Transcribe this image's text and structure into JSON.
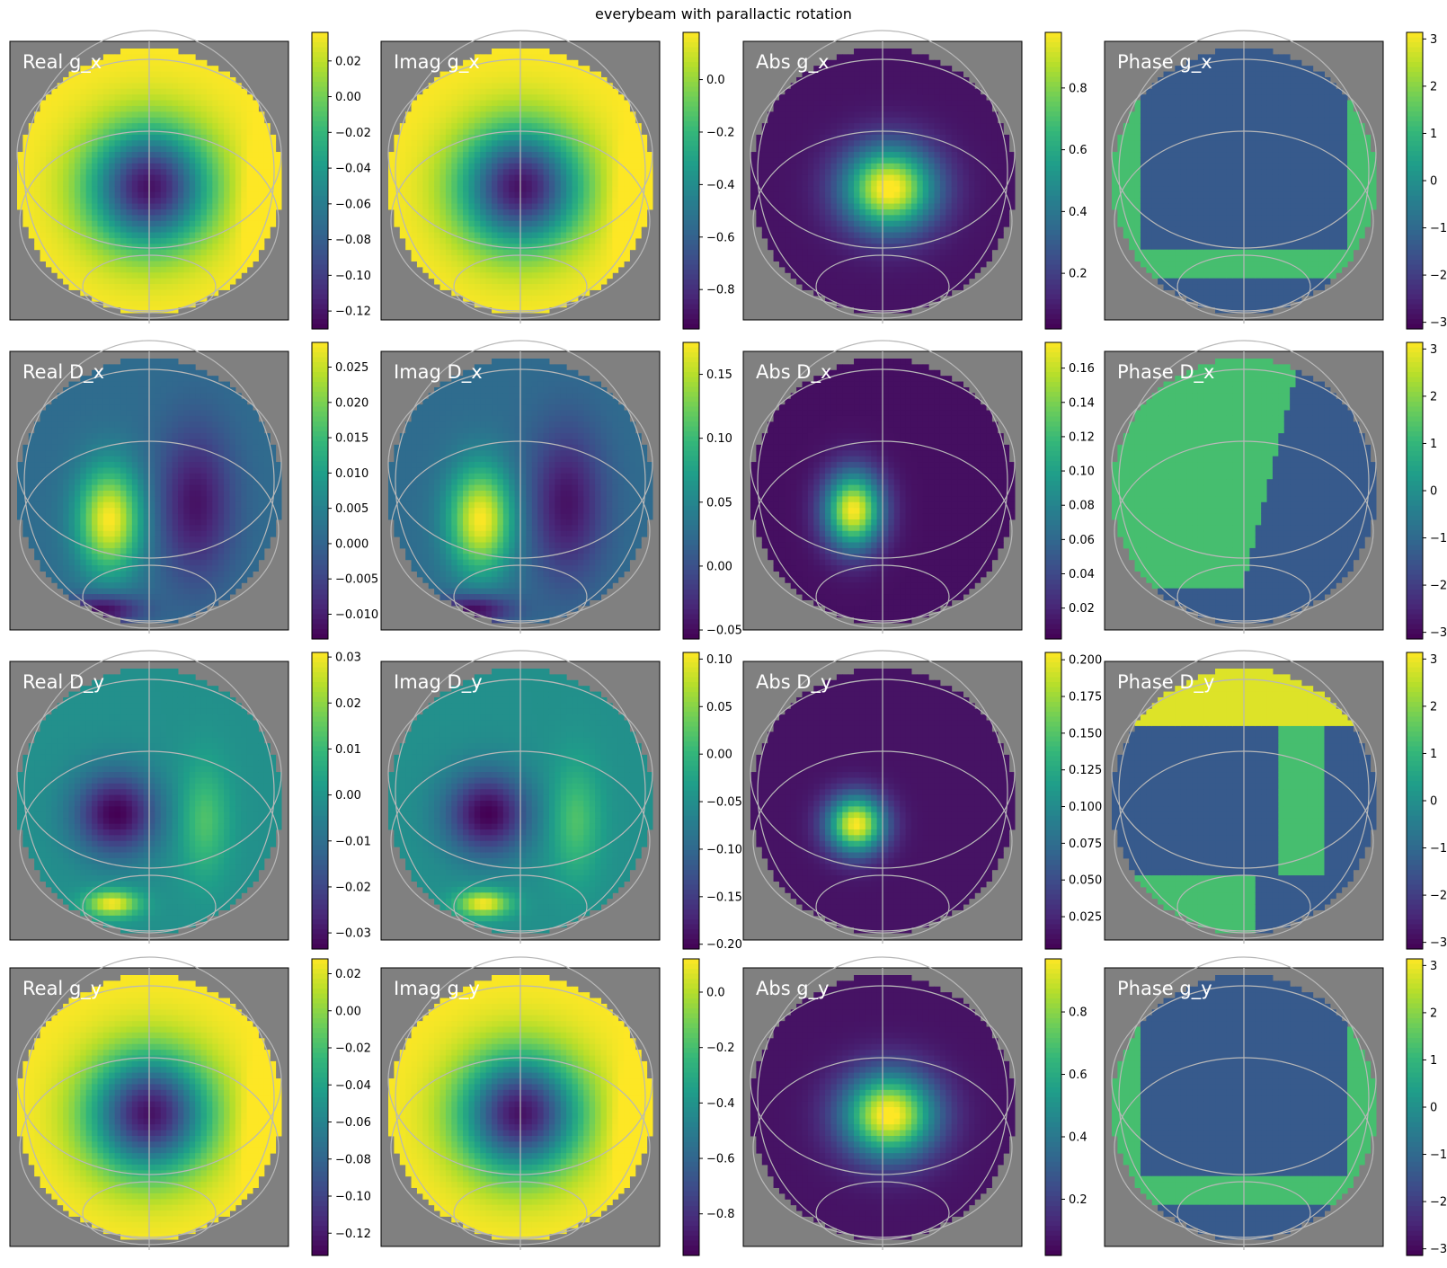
{
  "figure_title": "everybeam with parallactic rotation",
  "colors": {
    "background": "#808080",
    "grid": "#b8b8b8",
    "label": "#ffffff",
    "colormap": "viridis"
  },
  "chart_data": [
    {
      "type": "heatmap",
      "title": "Real g_x",
      "colorbar": {
        "range": [
          -0.13,
          0.036
        ],
        "ticks": [
          0.02,
          0.0,
          -0.02,
          -0.04,
          -0.06,
          -0.08,
          -0.1,
          -0.12
        ],
        "tick_labels": [
          "0.02",
          "0.00",
          "−0.02",
          "−0.04",
          "−0.06",
          "−0.08",
          "−0.10",
          "−0.12"
        ]
      },
      "pattern": "ring-center-low"
    },
    {
      "type": "heatmap",
      "title": "Imag g_x",
      "colorbar": {
        "range": [
          -0.95,
          0.18
        ],
        "ticks": [
          0.0,
          -0.2,
          -0.4,
          -0.6,
          -0.8
        ],
        "tick_labels": [
          "0.0",
          "−0.2",
          "−0.4",
          "−0.6",
          "−0.8"
        ]
      },
      "pattern": "ring-center-low"
    },
    {
      "type": "heatmap",
      "title": "Abs g_x",
      "colorbar": {
        "range": [
          0.02,
          0.98
        ],
        "ticks": [
          0.8,
          0.6,
          0.4,
          0.2
        ],
        "tick_labels": [
          "0.8",
          "0.6",
          "0.4",
          "0.2"
        ]
      },
      "pattern": "center-peak"
    },
    {
      "type": "heatmap",
      "title": "Phase g_x",
      "colorbar": {
        "range": [
          -3.14,
          3.14
        ],
        "ticks": [
          3,
          2,
          1,
          0,
          -1,
          -2,
          -3
        ],
        "tick_labels": [
          "3",
          "2",
          "1",
          "0",
          "−1",
          "−2",
          "−3"
        ]
      },
      "pattern": "phase-box"
    },
    {
      "type": "heatmap",
      "title": "Real D_x",
      "colorbar": {
        "range": [
          -0.0135,
          0.0285
        ],
        "ticks": [
          0.025,
          0.02,
          0.015,
          0.01,
          0.005,
          0.0,
          -0.005,
          -0.01
        ],
        "tick_labels": [
          "0.025",
          "0.020",
          "0.015",
          "0.010",
          "0.005",
          "0.000",
          "−0.005",
          "−0.010"
        ]
      },
      "pattern": "left-lobe"
    },
    {
      "type": "heatmap",
      "title": "Imag D_x",
      "colorbar": {
        "range": [
          -0.057,
          0.175
        ],
        "ticks": [
          0.15,
          0.1,
          0.05,
          0.0,
          -0.05
        ],
        "tick_labels": [
          "0.15",
          "0.10",
          "0.05",
          "0.00",
          "−0.05"
        ]
      },
      "pattern": "left-lobe"
    },
    {
      "type": "heatmap",
      "title": "Abs D_x",
      "colorbar": {
        "range": [
          0.002,
          0.175
        ],
        "ticks": [
          0.16,
          0.14,
          0.12,
          0.1,
          0.08,
          0.06,
          0.04,
          0.02
        ],
        "tick_labels": [
          "0.16",
          "0.14",
          "0.12",
          "0.10",
          "0.08",
          "0.06",
          "0.04",
          "0.02"
        ]
      },
      "pattern": "left-peak"
    },
    {
      "type": "heatmap",
      "title": "Phase D_x",
      "colorbar": {
        "range": [
          -3.14,
          3.14
        ],
        "ticks": [
          3,
          2,
          1,
          0,
          -1,
          -2,
          -3
        ],
        "tick_labels": [
          "3",
          "2",
          "1",
          "0",
          "−1",
          "−2",
          "−3"
        ]
      },
      "pattern": "phase-split"
    },
    {
      "type": "heatmap",
      "title": "Real D_y",
      "colorbar": {
        "range": [
          -0.0335,
          0.031
        ],
        "ticks": [
          0.03,
          0.02,
          0.01,
          0.0,
          -0.01,
          -0.02,
          -0.03
        ],
        "tick_labels": [
          "0.03",
          "0.02",
          "0.01",
          "0.00",
          "−0.01",
          "−0.02",
          "−0.03"
        ]
      },
      "pattern": "left-dip"
    },
    {
      "type": "heatmap",
      "title": "Imag D_y",
      "colorbar": {
        "range": [
          -0.205,
          0.107
        ],
        "ticks": [
          0.1,
          0.05,
          0.0,
          -0.05,
          -0.1,
          -0.15,
          -0.2
        ],
        "tick_labels": [
          "0.10",
          "0.05",
          "0.00",
          "−0.05",
          "−0.10",
          "−0.15",
          "−0.20"
        ]
      },
      "pattern": "left-dip"
    },
    {
      "type": "heatmap",
      "title": "Abs D_y",
      "colorbar": {
        "range": [
          0.003,
          0.205
        ],
        "ticks": [
          0.2,
          0.175,
          0.15,
          0.125,
          0.1,
          0.075,
          0.05,
          0.025
        ],
        "tick_labels": [
          "0.200",
          "0.175",
          "0.150",
          "0.125",
          "0.100",
          "0.075",
          "0.050",
          "0.025"
        ]
      },
      "pattern": "lowleft-peak"
    },
    {
      "type": "heatmap",
      "title": "Phase D_y",
      "colorbar": {
        "range": [
          -3.14,
          3.14
        ],
        "ticks": [
          3,
          2,
          1,
          0,
          -1,
          -2,
          -3
        ],
        "tick_labels": [
          "3",
          "2",
          "1",
          "0",
          "−1",
          "−2",
          "−3"
        ]
      },
      "pattern": "phase-split-y"
    },
    {
      "type": "heatmap",
      "title": "Real g_y",
      "colorbar": {
        "range": [
          -0.132,
          0.028
        ],
        "ticks": [
          0.02,
          0.0,
          -0.02,
          -0.04,
          -0.06,
          -0.08,
          -0.1,
          -0.12
        ],
        "tick_labels": [
          "0.02",
          "0.00",
          "−0.02",
          "−0.04",
          "−0.06",
          "−0.08",
          "−0.10",
          "−0.12"
        ]
      },
      "pattern": "ring-center-low"
    },
    {
      "type": "heatmap",
      "title": "Imag g_y",
      "colorbar": {
        "range": [
          -0.95,
          0.12
        ],
        "ticks": [
          0.0,
          -0.2,
          -0.4,
          -0.6,
          -0.8
        ],
        "tick_labels": [
          "0.0",
          "−0.2",
          "−0.4",
          "−0.6",
          "−0.8"
        ]
      },
      "pattern": "ring-center-low"
    },
    {
      "type": "heatmap",
      "title": "Abs g_y",
      "colorbar": {
        "range": [
          0.02,
          0.97
        ],
        "ticks": [
          0.8,
          0.6,
          0.4,
          0.2
        ],
        "tick_labels": [
          "0.8",
          "0.6",
          "0.4",
          "0.2"
        ]
      },
      "pattern": "center-peak"
    },
    {
      "type": "heatmap",
      "title": "Phase g_y",
      "colorbar": {
        "range": [
          -3.14,
          3.14
        ],
        "ticks": [
          3,
          2,
          1,
          0,
          -1,
          -2,
          -3
        ],
        "tick_labels": [
          "3",
          "2",
          "1",
          "0",
          "−1",
          "−2",
          "−3"
        ]
      },
      "pattern": "phase-box"
    }
  ]
}
